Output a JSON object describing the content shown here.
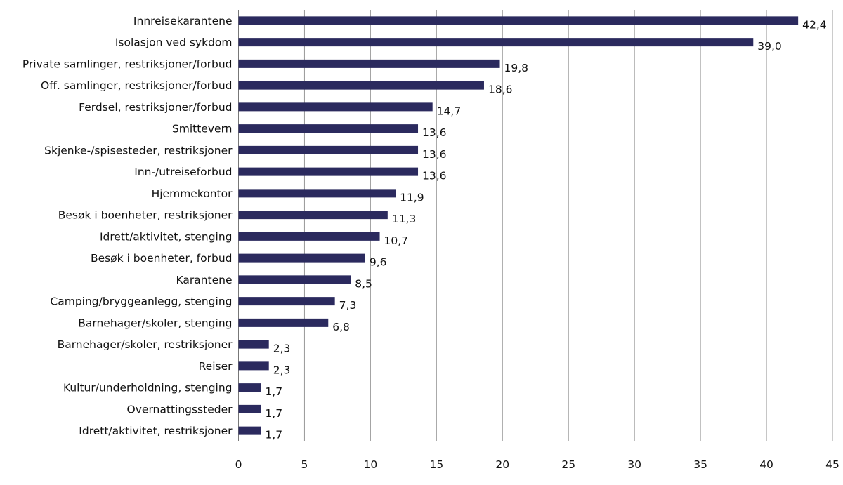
{
  "chart_data": {
    "type": "bar",
    "orientation": "horizontal",
    "title": "",
    "xlabel": "",
    "ylabel": "",
    "xlim": [
      0,
      45
    ],
    "xticks": [
      0,
      5,
      10,
      15,
      20,
      25,
      30,
      35,
      40,
      45
    ],
    "grid": "vertical",
    "bar_color": "#2b2a5e",
    "categories": [
      "Innreisekarantene",
      "Isolasjon ved sykdom",
      "Private samlinger, restriksjoner/forbud",
      "Off. samlinger, restriksjoner/forbud",
      "Ferdsel, restriksjoner/forbud",
      "Smittevern",
      "Skjenke-/spisesteder, restriksjoner",
      "Inn-/utreiseforbud",
      "Hjemmekontor",
      "Besøk i boenheter, restriksjoner",
      "Idrett/aktivitet, stenging",
      "Besøk i boenheter, forbud",
      "Karantene",
      "Camping/bryggeanlegg, stenging",
      "Barnehager/skoler, stenging",
      "Barnehager/skoler, restriksjoner",
      "Reiser",
      "Kultur/underholdning, stenging",
      "Overnattingssteder",
      "Idrett/aktivitet, restriksjoner"
    ],
    "values": [
      42.4,
      39.0,
      19.8,
      18.6,
      14.7,
      13.6,
      13.6,
      13.6,
      11.9,
      11.3,
      10.7,
      9.6,
      8.5,
      7.3,
      6.8,
      2.3,
      2.3,
      1.7,
      1.7,
      1.7
    ],
    "labels": [
      "42,4",
      "39,0",
      "19,8",
      "18,6",
      "14,7",
      "13,6",
      "13,6",
      "13,6",
      "11,9",
      "11,3",
      "10,7",
      "9,6",
      "8,5",
      "7,3",
      "6,8",
      "2,3",
      "2,3",
      "1,7",
      "1,7",
      "1,7"
    ]
  }
}
